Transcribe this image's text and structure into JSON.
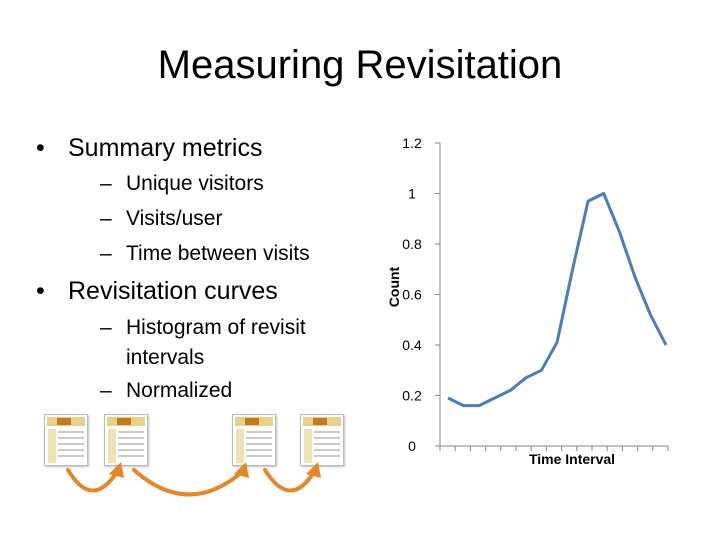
{
  "title": "Measuring Revisitation",
  "bullets": [
    {
      "text": "Summary metrics",
      "sub": [
        "Unique visitors",
        "Visits/user",
        "Time between visits"
      ]
    },
    {
      "text": "Revisitation curves",
      "sub": [
        {
          "line1": "Histogram of revisit",
          "line2": "intervals"
        },
        "Normalized"
      ]
    }
  ],
  "colors": {
    "line": "#4a7ebb",
    "arrow": "#e6862a"
  },
  "chart_data": {
    "type": "line",
    "xlabel": "Time Interval",
    "ylabel": "Count",
    "ylim": [
      0,
      1.2
    ],
    "yticks": [
      "0",
      "0.2",
      "0.4",
      "0.6",
      "0.8",
      "1",
      "1.2"
    ],
    "grid": false,
    "series": [
      {
        "values": [
          0.19,
          0.16,
          0.16,
          0.19,
          0.22,
          0.27,
          0.3,
          0.41,
          0.7,
          0.97,
          1.0,
          0.85,
          0.67,
          0.52,
          0.4
        ]
      }
    ]
  },
  "thumbnails": {
    "icon": "webpage-thumbnail-icon",
    "count": 4
  }
}
